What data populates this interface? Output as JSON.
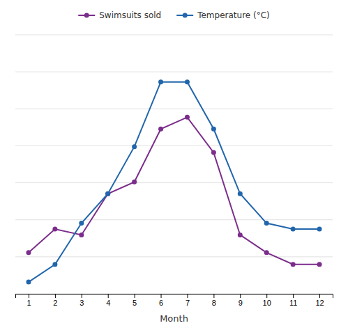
{
  "chart_data": {
    "type": "line",
    "xlabel": "Month",
    "x": [
      1,
      2,
      3,
      4,
      5,
      6,
      7,
      8,
      9,
      10,
      11,
      12
    ],
    "series": [
      {
        "name": "Swimsuits sold",
        "color": "#7B2D8B",
        "values": [
          5,
          9,
          8,
          15,
          17,
          26,
          28,
          22,
          8,
          5,
          3,
          3
        ]
      },
      {
        "name": "Temperature (°C)",
        "color": "#2166AC",
        "values": [
          0,
          3,
          10,
          15,
          23,
          34,
          34,
          26,
          15,
          10,
          9,
          9
        ]
      }
    ],
    "xlim": [
      0.5,
      12.5
    ],
    "xticks": [
      1,
      2,
      3,
      4,
      5,
      6,
      7,
      8,
      9,
      10,
      11,
      12
    ],
    "ylim": [
      -2,
      42
    ],
    "yticks": [
      -2,
      4.285714285714286,
      10.571428571428571,
      16.857142857142858,
      23.142857142857142,
      29.42857142857143,
      35.71428571428572,
      42
    ],
    "grid": true,
    "legend": "top",
    "tick_labels": "x",
    "marker": "circle"
  }
}
